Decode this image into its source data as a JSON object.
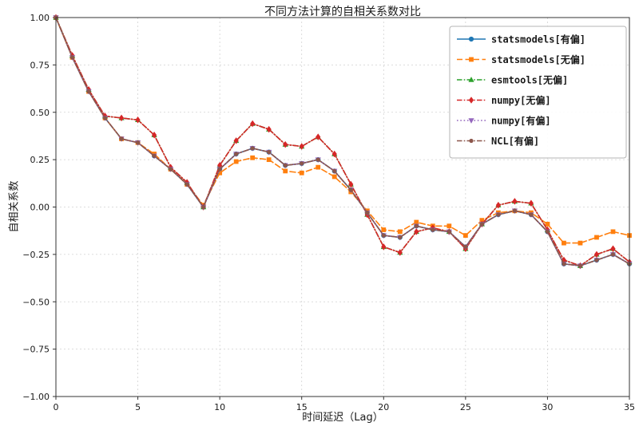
{
  "chart_data": {
    "type": "line",
    "title": "不同方法计算的自相关系数对比",
    "xlabel": "时间延迟（Lag）",
    "ylabel": "自相关系数",
    "xlim": [
      0,
      35
    ],
    "ylim": [
      -1.0,
      1.0
    ],
    "xticks": [
      0,
      5,
      10,
      15,
      20,
      25,
      30,
      35
    ],
    "xtick_labels": [
      "0",
      "5",
      "10",
      "15",
      "20",
      "25",
      "30",
      "35"
    ],
    "yticks": [
      1.0,
      0.75,
      0.5,
      0.25,
      0.0,
      -0.25,
      -0.5,
      -0.75,
      -1.0
    ],
    "ytick_labels": [
      "1.00",
      "0.75",
      "0.50",
      "0.25",
      "0.00",
      "−0.25",
      "−0.50",
      "−0.75",
      "−1.00"
    ],
    "grid": true,
    "legend_position": "upper right",
    "x": [
      0,
      1,
      2,
      3,
      4,
      5,
      6,
      7,
      8,
      9,
      10,
      11,
      12,
      13,
      14,
      15,
      16,
      17,
      18,
      19,
      20,
      21,
      22,
      23,
      24,
      25,
      26,
      27,
      28,
      29,
      30,
      31,
      32,
      33,
      34,
      35
    ],
    "series": [
      {
        "name": "statsmodels[有偏]",
        "color": "#1f77b4",
        "linestyle": "solid",
        "marker": "circle",
        "values": [
          1.0,
          0.79,
          0.61,
          0.47,
          0.36,
          0.34,
          0.27,
          0.2,
          0.12,
          0.0,
          0.2,
          0.28,
          0.31,
          0.29,
          0.22,
          0.23,
          0.25,
          0.19,
          0.09,
          -0.03,
          -0.15,
          -0.16,
          -0.1,
          -0.12,
          -0.13,
          -0.21,
          -0.09,
          -0.04,
          -0.02,
          -0.04,
          -0.13,
          -0.3,
          -0.31,
          -0.28,
          -0.25,
          -0.3
        ]
      },
      {
        "name": "statsmodels[无偏]",
        "color": "#ff7f0e",
        "linestyle": "dashed",
        "marker": "square",
        "values": [
          1.0,
          0.79,
          0.61,
          0.47,
          0.36,
          0.34,
          0.28,
          0.2,
          0.12,
          0.01,
          0.18,
          0.24,
          0.26,
          0.25,
          0.19,
          0.18,
          0.21,
          0.16,
          0.08,
          -0.02,
          -0.12,
          -0.13,
          -0.08,
          -0.1,
          -0.1,
          -0.15,
          -0.07,
          -0.03,
          -0.02,
          -0.03,
          -0.09,
          -0.19,
          -0.19,
          -0.16,
          -0.13,
          -0.15
        ]
      },
      {
        "name": "esmtools[无偏]",
        "color": "#2ca02c",
        "linestyle": "dashdot",
        "marker": "triangle-up",
        "values": [
          1.0,
          0.8,
          0.62,
          0.48,
          0.47,
          0.46,
          0.38,
          0.21,
          0.13,
          0.0,
          0.22,
          0.35,
          0.44,
          0.41,
          0.33,
          0.32,
          0.37,
          0.28,
          0.12,
          -0.04,
          -0.21,
          -0.24,
          -0.13,
          -0.11,
          -0.13,
          -0.22,
          -0.09,
          0.01,
          0.03,
          0.02,
          -0.12,
          -0.28,
          -0.31,
          -0.25,
          -0.22,
          -0.29
        ]
      },
      {
        "name": "numpy[无偏]",
        "color": "#d62728",
        "linestyle": "dashdot",
        "marker": "diamond",
        "values": [
          1.0,
          0.8,
          0.62,
          0.48,
          0.47,
          0.46,
          0.38,
          0.21,
          0.13,
          0.0,
          0.22,
          0.35,
          0.44,
          0.41,
          0.33,
          0.32,
          0.37,
          0.28,
          0.12,
          -0.04,
          -0.21,
          -0.24,
          -0.13,
          -0.11,
          -0.13,
          -0.22,
          -0.09,
          0.01,
          0.03,
          0.02,
          -0.12,
          -0.28,
          -0.31,
          -0.25,
          -0.22,
          -0.29
        ]
      },
      {
        "name": "numpy[有偏]",
        "color": "#9467bd",
        "linestyle": "dotted",
        "marker": "triangle-down",
        "values": [
          1.0,
          0.79,
          0.61,
          0.47,
          0.36,
          0.34,
          0.27,
          0.2,
          0.12,
          0.0,
          0.2,
          0.28,
          0.31,
          0.29,
          0.22,
          0.23,
          0.25,
          0.19,
          0.09,
          -0.03,
          -0.15,
          -0.16,
          -0.1,
          -0.12,
          -0.13,
          -0.21,
          -0.09,
          -0.04,
          -0.02,
          -0.04,
          -0.13,
          -0.3,
          -0.31,
          -0.28,
          -0.25,
          -0.3
        ]
      },
      {
        "name": "NCL[有偏]",
        "color": "#8c564b",
        "linestyle": "dashdot",
        "marker": "dot",
        "values": [
          1.0,
          0.79,
          0.61,
          0.47,
          0.36,
          0.34,
          0.27,
          0.2,
          0.12,
          0.0,
          0.2,
          0.28,
          0.31,
          0.29,
          0.22,
          0.23,
          0.25,
          0.19,
          0.09,
          -0.03,
          -0.15,
          -0.16,
          -0.1,
          -0.12,
          -0.13,
          -0.21,
          -0.09,
          -0.04,
          -0.02,
          -0.04,
          -0.13,
          -0.3,
          -0.31,
          -0.28,
          -0.25,
          -0.3
        ]
      }
    ]
  }
}
